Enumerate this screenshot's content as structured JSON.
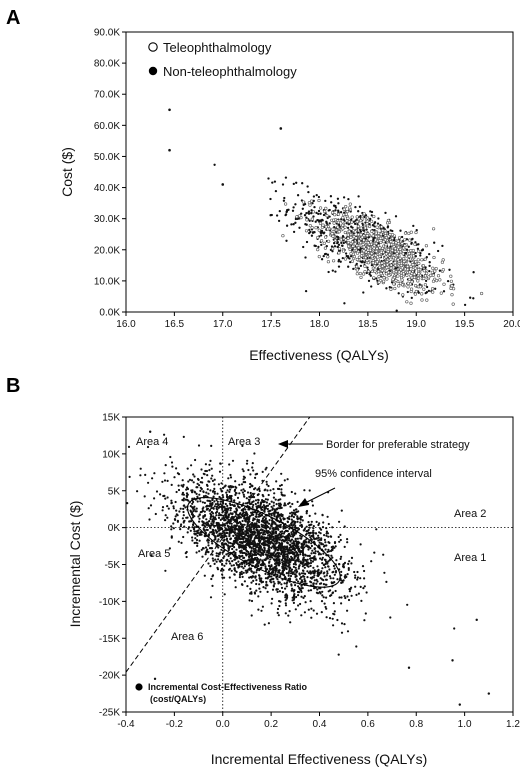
{
  "chart_data": [
    {
      "panel": "A",
      "type": "scatter",
      "xlabel": "Effectiveness (QALYs)",
      "ylabel": "Cost ($)",
      "xlim": [
        16.0,
        20.0
      ],
      "ylim": [
        0,
        90000
      ],
      "x_ticks": [
        "16.0",
        "16.5",
        "17.0",
        "17.5",
        "18.0",
        "18.5",
        "19.0",
        "19.5",
        "20.0"
      ],
      "y_ticks": [
        "0.0K",
        "10.0K",
        "20.0K",
        "30.0K",
        "40.0K",
        "50.0K",
        "60.0K",
        "70.0K",
        "80.0K",
        "90.0K"
      ],
      "grid": false,
      "legend_position": "top-left",
      "series": [
        {
          "name": "Teleophthalmology",
          "marker": "open-circle",
          "color": "#555555",
          "cloud": {
            "mean_x": 18.65,
            "mean_y": 19000,
            "sd_x": 0.32,
            "sd_y": 6500,
            "corr": -0.72,
            "n": 700
          }
        },
        {
          "name": "Non-teleophthalmology",
          "marker": "filled-circle",
          "color": "#111111",
          "cloud": {
            "mean_x": 18.45,
            "mean_y": 22000,
            "sd_x": 0.38,
            "sd_y": 8000,
            "corr": -0.7,
            "n": 700
          }
        }
      ],
      "points": [
        [
          16.45,
          65000
        ],
        [
          16.45,
          52000
        ],
        [
          17.6,
          59000
        ],
        [
          17.0,
          41000
        ]
      ]
    },
    {
      "panel": "B",
      "type": "scatter",
      "xlabel": "Incremental Effectiveness (QALYs)",
      "ylabel": "Incremental Cost ($)",
      "xlim": [
        -0.4,
        1.2
      ],
      "ylim": [
        -25000,
        15000
      ],
      "x_ticks": [
        "-0.4",
        "-0.2",
        "0.0",
        "0.2",
        "0.4",
        "0.6",
        "0.8",
        "1.0",
        "1.2"
      ],
      "y_ticks": [
        "-25K",
        "-20K",
        "-15K",
        "-10K",
        "-5K",
        "0K",
        "5K",
        "10K",
        "15K"
      ],
      "grid": false,
      "legend_position": "bottom-left",
      "series": [
        {
          "name": "Incremental Cost-Effectiveness Ratio (cost/QALYs)",
          "marker": "filled-circle",
          "color": "#111111",
          "cloud": {
            "mean_x": 0.16,
            "mean_y": -1500,
            "sd_x": 0.17,
            "sd_y": 4200,
            "corr": -0.55,
            "n": 3000
          }
        }
      ],
      "points": [
        [
          -0.28,
          -20500
        ],
        [
          -0.3,
          13000
        ],
        [
          0.98,
          -24000
        ],
        [
          1.1,
          -22500
        ],
        [
          0.77,
          -19000
        ],
        [
          1.05,
          -12500
        ],
        [
          0.95,
          -18000
        ]
      ],
      "confidence_ellipse": {
        "center": [
          0.17,
          -2000
        ],
        "rx": 0.35,
        "ry": 3500,
        "angle_deg": -27
      },
      "border_line": {
        "x1": -0.4,
        "y1": -19600,
        "x2": 0.36,
        "y2": 17600
      },
      "reference_lines": {
        "x": 0.0,
        "y": 0
      },
      "annotations": {
        "border": "Border for preferable strategy",
        "ci": "95% confidence interval",
        "area1": "Area 1",
        "area2": "Area 2",
        "area3": "Area 3",
        "area4": "Area 4",
        "area5": "Area 5",
        "area6": "Area 6"
      }
    }
  ],
  "labels": {
    "panel_a": "A",
    "panel_b": "B"
  }
}
